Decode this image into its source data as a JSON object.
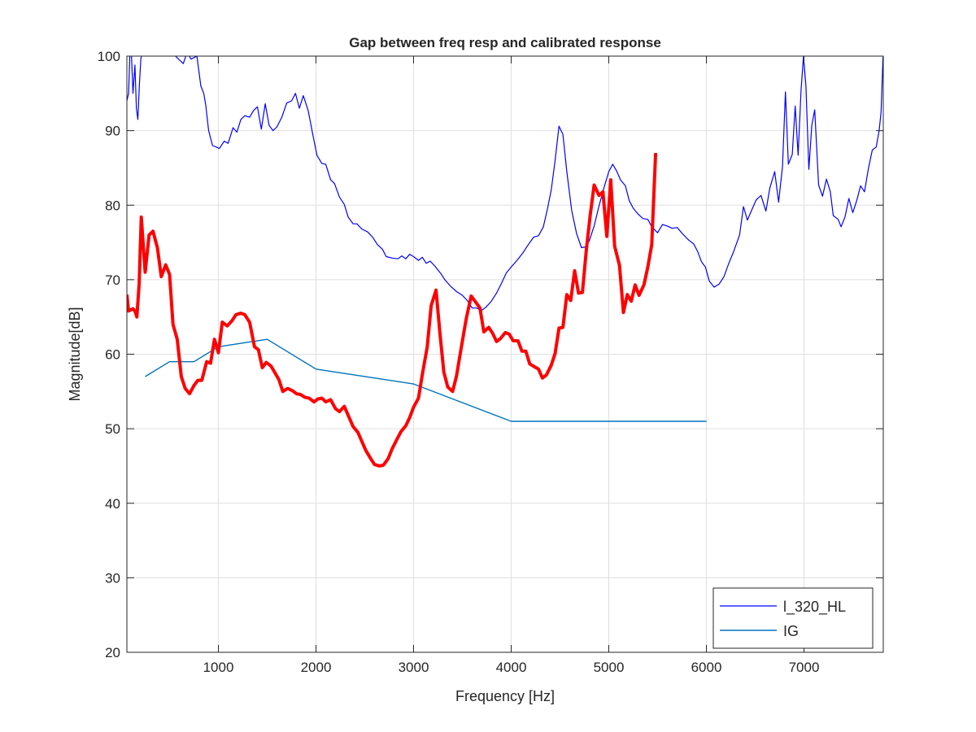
{
  "chart_data": {
    "type": "line",
    "title": "Gap between freq resp and calibrated response",
    "xlabel": "Frequency [Hz]",
    "ylabel": "Magnitude[dB]",
    "xlim": [
      62.5,
      7812.5
    ],
    "ylim": [
      20,
      100
    ],
    "xticks": [
      1000,
      2000,
      3000,
      4000,
      5000,
      6000,
      7000
    ],
    "yticks": [
      20,
      30,
      40,
      50,
      60,
      70,
      80,
      90,
      100
    ],
    "grid": true,
    "legend_position": "bottom-right",
    "series": [
      {
        "name": "l_320_HL",
        "color": "#0000ff",
        "width": 1.2,
        "in_legend": true,
        "points": [
          [
            62.5,
            94
          ],
          [
            80,
            95
          ],
          [
            95,
            101
          ],
          [
            110,
            100
          ],
          [
            125,
            95
          ],
          [
            145,
            98.8
          ],
          [
            160,
            93
          ],
          [
            175,
            91.5
          ],
          [
            190,
            96
          ],
          [
            205,
            99.5
          ],
          [
            220,
            101
          ],
          [
            240,
            100
          ],
          [
            270,
            102
          ],
          [
            330,
            101
          ],
          [
            400,
            101
          ],
          [
            480,
            100.2
          ],
          [
            560,
            100
          ],
          [
            640,
            99
          ],
          [
            680,
            100.5
          ],
          [
            720,
            99.6
          ],
          [
            780,
            100
          ],
          [
            820,
            96
          ],
          [
            850,
            95
          ],
          [
            870,
            93.5
          ],
          [
            900,
            90
          ],
          [
            940,
            88
          ],
          [
            980,
            87.8
          ],
          [
            1010,
            87.6
          ],
          [
            1060,
            88.6
          ],
          [
            1100,
            88.3
          ],
          [
            1150,
            90.4
          ],
          [
            1190,
            89.8
          ],
          [
            1230,
            91.5
          ],
          [
            1270,
            92
          ],
          [
            1320,
            91.8
          ],
          [
            1360,
            92.7
          ],
          [
            1400,
            93.2
          ],
          [
            1440,
            90.2
          ],
          [
            1480,
            93.6
          ],
          [
            1520,
            90.7
          ],
          [
            1560,
            90
          ],
          [
            1600,
            90.5
          ],
          [
            1650,
            91.8
          ],
          [
            1700,
            93.7
          ],
          [
            1750,
            94
          ],
          [
            1790,
            95
          ],
          [
            1830,
            93
          ],
          [
            1870,
            94.7
          ],
          [
            1920,
            92.7
          ],
          [
            1970,
            89.3
          ],
          [
            2010,
            86.7
          ],
          [
            2060,
            85.6
          ],
          [
            2100,
            85.5
          ],
          [
            2150,
            83.4
          ],
          [
            2190,
            82.9
          ],
          [
            2240,
            81.1
          ],
          [
            2290,
            80.1
          ],
          [
            2330,
            78.4
          ],
          [
            2380,
            77.5
          ],
          [
            2420,
            77.5
          ],
          [
            2470,
            76.8
          ],
          [
            2530,
            76.4
          ],
          [
            2580,
            75.7
          ],
          [
            2630,
            74.7
          ],
          [
            2680,
            74.1
          ],
          [
            2720,
            73.1
          ],
          [
            2780,
            72.9
          ],
          [
            2840,
            72.8
          ],
          [
            2880,
            73.2
          ],
          [
            2920,
            72.8
          ],
          [
            2960,
            73.4
          ],
          [
            3000,
            73.1
          ],
          [
            3050,
            72.6
          ],
          [
            3090,
            73
          ],
          [
            3130,
            72.2
          ],
          [
            3170,
            72.5
          ],
          [
            3220,
            71.8
          ],
          [
            3280,
            70.8
          ],
          [
            3320,
            70
          ],
          [
            3380,
            69.1
          ],
          [
            3440,
            68.4
          ],
          [
            3500,
            67.9
          ],
          [
            3550,
            67.2
          ],
          [
            3600,
            66.2
          ],
          [
            3650,
            66.2
          ],
          [
            3690,
            65.8
          ],
          [
            3740,
            66.3
          ],
          [
            3790,
            67
          ],
          [
            3850,
            68.2
          ],
          [
            3900,
            69.5
          ],
          [
            3950,
            70.9
          ],
          [
            4000,
            71.7
          ],
          [
            4060,
            72.6
          ],
          [
            4120,
            73.6
          ],
          [
            4170,
            74.6
          ],
          [
            4230,
            75.7
          ],
          [
            4280,
            75.9
          ],
          [
            4330,
            77.1
          ],
          [
            4370,
            79.4
          ],
          [
            4410,
            82
          ],
          [
            4450,
            86
          ],
          [
            4490,
            90.6
          ],
          [
            4530,
            89.5
          ],
          [
            4570,
            84.5
          ],
          [
            4620,
            79.3
          ],
          [
            4670,
            76.2
          ],
          [
            4720,
            74.3
          ],
          [
            4760,
            74.4
          ],
          [
            4800,
            75.2
          ],
          [
            4850,
            77.2
          ],
          [
            4900,
            79.9
          ],
          [
            4950,
            82.3
          ],
          [
            5000,
            84.5
          ],
          [
            5040,
            85.5
          ],
          [
            5080,
            84.6
          ],
          [
            5120,
            83.4
          ],
          [
            5170,
            82.6
          ],
          [
            5210,
            80.6
          ],
          [
            5250,
            79.6
          ],
          [
            5300,
            78.8
          ],
          [
            5350,
            78.2
          ],
          [
            5400,
            78.1
          ],
          [
            5440,
            77.1
          ],
          [
            5500,
            76.3
          ],
          [
            5550,
            77.4
          ],
          [
            5600,
            77.2
          ],
          [
            5650,
            76.9
          ],
          [
            5700,
            77
          ],
          [
            5760,
            76.1
          ],
          [
            5820,
            75.3
          ],
          [
            5870,
            74.8
          ],
          [
            5910,
            73.8
          ],
          [
            5950,
            72.4
          ],
          [
            5990,
            71.7
          ],
          [
            6030,
            69.8
          ],
          [
            6080,
            69
          ],
          [
            6130,
            69.4
          ],
          [
            6180,
            70.4
          ],
          [
            6230,
            72.2
          ],
          [
            6280,
            73.8
          ],
          [
            6340,
            76
          ],
          [
            6380,
            79.8
          ],
          [
            6420,
            78
          ],
          [
            6470,
            79.5
          ],
          [
            6510,
            80.7
          ],
          [
            6560,
            81.3
          ],
          [
            6610,
            79.2
          ],
          [
            6650,
            82.3
          ],
          [
            6700,
            84.5
          ],
          [
            6740,
            80.4
          ],
          [
            6780,
            85.2
          ],
          [
            6810,
            95.2
          ],
          [
            6840,
            85.5
          ],
          [
            6880,
            86.8
          ],
          [
            6910,
            93.3
          ],
          [
            6940,
            86.7
          ],
          [
            6970,
            95.4
          ],
          [
            6995,
            100
          ],
          [
            7020,
            96
          ],
          [
            7050,
            84.8
          ],
          [
            7080,
            90.7
          ],
          [
            7110,
            92.8
          ],
          [
            7150,
            82.7
          ],
          [
            7190,
            81.2
          ],
          [
            7230,
            83.5
          ],
          [
            7270,
            81.8
          ],
          [
            7300,
            78.6
          ],
          [
            7350,
            78.1
          ],
          [
            7380,
            77.1
          ],
          [
            7420,
            78.4
          ],
          [
            7460,
            80.9
          ],
          [
            7500,
            79
          ],
          [
            7540,
            80.6
          ],
          [
            7580,
            82.6
          ],
          [
            7620,
            81.8
          ],
          [
            7660,
            84.9
          ],
          [
            7700,
            87.4
          ],
          [
            7740,
            87.8
          ],
          [
            7770,
            90
          ],
          [
            7790,
            92.5
          ],
          [
            7812.5,
            101
          ]
        ]
      },
      {
        "name": "IG",
        "color": "#0072bd",
        "width": 1.4,
        "in_legend": true,
        "points": [
          [
            250,
            57
          ],
          [
            500,
            59
          ],
          [
            750,
            59
          ],
          [
            1000,
            61
          ],
          [
            1500,
            62
          ],
          [
            2000,
            58
          ],
          [
            3000,
            56
          ],
          [
            4000,
            51
          ],
          [
            6000,
            51
          ]
        ]
      },
      {
        "color": "#ff0000",
        "width": 4,
        "in_legend": false,
        "points": [
          [
            62.5,
            68
          ],
          [
            80,
            65.8
          ],
          [
            125,
            66.1
          ],
          [
            145,
            65.8
          ],
          [
            165,
            65
          ],
          [
            188,
            69.5
          ],
          [
            210,
            78.4
          ],
          [
            250,
            71
          ],
          [
            290,
            76
          ],
          [
            330,
            76.5
          ],
          [
            375,
            74.3
          ],
          [
            415,
            70.4
          ],
          [
            460,
            72
          ],
          [
            500,
            70.7
          ],
          [
            535,
            64
          ],
          [
            578,
            62
          ],
          [
            620,
            57
          ],
          [
            660,
            55.4
          ],
          [
            705,
            54.7
          ],
          [
            750,
            55.8
          ],
          [
            790,
            56.5
          ],
          [
            830,
            56.5
          ],
          [
            880,
            59
          ],
          [
            920,
            58.8
          ],
          [
            960,
            62
          ],
          [
            1000,
            60.2
          ],
          [
            1040,
            64.3
          ],
          [
            1090,
            63.8
          ],
          [
            1140,
            64.5
          ],
          [
            1180,
            65.3
          ],
          [
            1230,
            65.5
          ],
          [
            1270,
            65.3
          ],
          [
            1320,
            64.3
          ],
          [
            1370,
            61
          ],
          [
            1410,
            60.6
          ],
          [
            1450,
            58.2
          ],
          [
            1490,
            58.9
          ],
          [
            1540,
            58.4
          ],
          [
            1580,
            57.5
          ],
          [
            1620,
            56.6
          ],
          [
            1660,
            55
          ],
          [
            1710,
            55.4
          ],
          [
            1760,
            55.1
          ],
          [
            1800,
            54.7
          ],
          [
            1840,
            54.6
          ],
          [
            1890,
            54.2
          ],
          [
            1930,
            54.1
          ],
          [
            1980,
            53.6
          ],
          [
            2020,
            54
          ],
          [
            2060,
            54.1
          ],
          [
            2100,
            53.6
          ],
          [
            2150,
            53.9
          ],
          [
            2200,
            52.7
          ],
          [
            2240,
            52.3
          ],
          [
            2290,
            53
          ],
          [
            2340,
            51.5
          ],
          [
            2380,
            50.3
          ],
          [
            2430,
            49.5
          ],
          [
            2470,
            48.3
          ],
          [
            2510,
            47.1
          ],
          [
            2560,
            46
          ],
          [
            2600,
            45.2
          ],
          [
            2650,
            45
          ],
          [
            2690,
            45.1
          ],
          [
            2740,
            46
          ],
          [
            2780,
            47.3
          ],
          [
            2830,
            48.6
          ],
          [
            2870,
            49.6
          ],
          [
            2920,
            50.4
          ],
          [
            2960,
            51.5
          ],
          [
            3000,
            52.9
          ],
          [
            3050,
            54.1
          ],
          [
            3090,
            57.3
          ],
          [
            3140,
            61
          ],
          [
            3180,
            66.5
          ],
          [
            3230,
            68.6
          ],
          [
            3270,
            62.8
          ],
          [
            3310,
            57.6
          ],
          [
            3350,
            55.6
          ],
          [
            3400,
            55
          ],
          [
            3440,
            57.1
          ],
          [
            3490,
            61
          ],
          [
            3540,
            64.8
          ],
          [
            3590,
            67.8
          ],
          [
            3630,
            67.1
          ],
          [
            3680,
            66.2
          ],
          [
            3720,
            63
          ],
          [
            3770,
            63.6
          ],
          [
            3810,
            62.8
          ],
          [
            3850,
            61.7
          ],
          [
            3890,
            62.1
          ],
          [
            3940,
            62.9
          ],
          [
            3980,
            62.7
          ],
          [
            4020,
            61.8
          ],
          [
            4070,
            61.8
          ],
          [
            4110,
            60.4
          ],
          [
            4150,
            60.4
          ],
          [
            4190,
            58.7
          ],
          [
            4240,
            58.3
          ],
          [
            4280,
            58
          ],
          [
            4320,
            56.8
          ],
          [
            4360,
            57.2
          ],
          [
            4410,
            58.5
          ],
          [
            4450,
            60.1
          ],
          [
            4490,
            63.5
          ],
          [
            4530,
            63.6
          ],
          [
            4570,
            68
          ],
          [
            4610,
            67.2
          ],
          [
            4650,
            71.2
          ],
          [
            4690,
            68.2
          ],
          [
            4730,
            68.3
          ],
          [
            4770,
            74
          ],
          [
            4810,
            78.7
          ],
          [
            4850,
            82.7
          ],
          [
            4900,
            81.3
          ],
          [
            4940,
            81.8
          ],
          [
            4980,
            75.8
          ],
          [
            5020,
            83.4
          ],
          [
            5060,
            74.5
          ],
          [
            5110,
            71.9
          ],
          [
            5150,
            65.6
          ],
          [
            5190,
            68
          ],
          [
            5230,
            67.1
          ],
          [
            5270,
            69.3
          ],
          [
            5310,
            67.9
          ],
          [
            5360,
            69.3
          ],
          [
            5400,
            71.7
          ],
          [
            5440,
            74.7
          ],
          [
            5480,
            87
          ]
        ]
      }
    ]
  }
}
